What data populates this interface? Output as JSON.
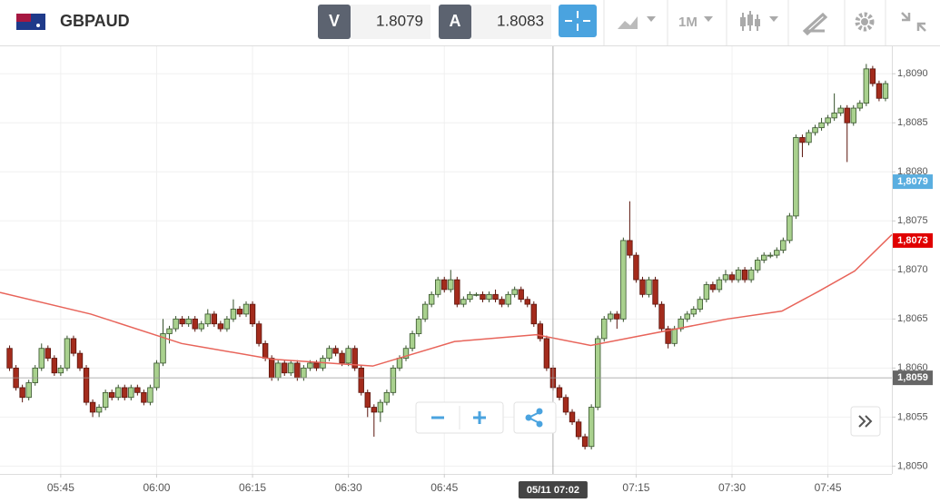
{
  "toolbar": {
    "symbol": "GBPAUD",
    "bid_label": "V",
    "bid": 1.8079,
    "ask_label": "A",
    "ask": 1.8083,
    "timeframe": "1M"
  },
  "chart_data": {
    "type": "candlestick",
    "xlim": [
      335.5,
      475
    ],
    "ylim": [
      1.80492,
      1.80928
    ],
    "xticks": [
      {
        "value": 345,
        "label": "05:45"
      },
      {
        "value": 360,
        "label": "06:00"
      },
      {
        "value": 375,
        "label": "06:15"
      },
      {
        "value": 390,
        "label": "06:30"
      },
      {
        "value": 405,
        "label": "06:45"
      },
      {
        "value": 435,
        "label": "07:15"
      },
      {
        "value": 450,
        "label": "07:30"
      },
      {
        "value": 465,
        "label": "07:45"
      }
    ],
    "yticks": [
      {
        "value": 1.805,
        "label": "1,8050"
      },
      {
        "value": 1.8055,
        "label": "1,8055"
      },
      {
        "value": 1.806,
        "label": "1,8060"
      },
      {
        "value": 1.8065,
        "label": "1,8065"
      },
      {
        "value": 1.807,
        "label": "1,8070"
      },
      {
        "value": 1.8075,
        "label": "1,8075"
      },
      {
        "value": 1.808,
        "label": "1,8080"
      },
      {
        "value": 1.8085,
        "label": "1,8085"
      },
      {
        "value": 1.809,
        "label": "1,8090"
      }
    ],
    "grid": true,
    "up_color": "#a9d18e",
    "down_color": "#a32b1c",
    "candles": [
      [
        337,
        1.8062,
        1.80623,
        1.80597,
        1.806
      ],
      [
        338,
        1.806,
        1.80603,
        1.80577,
        1.8058
      ],
      [
        339,
        1.8058,
        1.80583,
        1.80565,
        1.8057
      ],
      [
        340,
        1.8057,
        1.80588,
        1.80567,
        1.80585
      ],
      [
        341,
        1.80585,
        1.80603,
        1.80582,
        1.806
      ],
      [
        342,
        1.806,
        1.80625,
        1.80597,
        1.8062
      ],
      [
        343,
        1.8062,
        1.80623,
        1.80607,
        1.8061
      ],
      [
        344,
        1.8061,
        1.80613,
        1.80592,
        1.80595
      ],
      [
        345,
        1.80595,
        1.80603,
        1.80592,
        1.806
      ],
      [
        346,
        1.806,
        1.80633,
        1.80597,
        1.8063
      ],
      [
        347,
        1.8063,
        1.80633,
        1.80612,
        1.80615
      ],
      [
        348,
        1.80615,
        1.80618,
        1.80597,
        1.806
      ],
      [
        349,
        1.806,
        1.80603,
        1.80562,
        1.80565
      ],
      [
        350,
        1.80565,
        1.80568,
        1.8055,
        1.80555
      ],
      [
        351,
        1.80555,
        1.80563,
        1.8055,
        1.8056
      ],
      [
        352,
        1.8056,
        1.80578,
        1.80557,
        1.80575
      ],
      [
        353,
        1.80575,
        1.80578,
        1.80567,
        1.8057
      ],
      [
        354,
        1.8057,
        1.80583,
        1.80567,
        1.8058
      ],
      [
        355,
        1.8058,
        1.80583,
        1.80567,
        1.8057
      ],
      [
        356,
        1.8057,
        1.80583,
        1.80567,
        1.8058
      ],
      [
        357,
        1.8058,
        1.80583,
        1.80572,
        1.80575
      ],
      [
        358,
        1.80575,
        1.80578,
        1.80562,
        1.80565
      ],
      [
        359,
        1.80565,
        1.80583,
        1.80562,
        1.8058
      ],
      [
        360,
        1.8058,
        1.80608,
        1.80577,
        1.80605
      ],
      [
        361,
        1.80605,
        1.8065,
        1.80602,
        1.80635
      ],
      [
        362,
        1.80635,
        1.80643,
        1.80625,
        1.8064
      ],
      [
        363,
        1.8064,
        1.80653,
        1.80637,
        1.8065
      ],
      [
        364,
        1.8065,
        1.80653,
        1.80642,
        1.80645
      ],
      [
        365,
        1.80645,
        1.80653,
        1.80642,
        1.8065
      ],
      [
        366,
        1.8065,
        1.80653,
        1.80637,
        1.8064
      ],
      [
        367,
        1.8064,
        1.80648,
        1.80637,
        1.80645
      ],
      [
        368,
        1.80645,
        1.8066,
        1.80642,
        1.80655
      ],
      [
        369,
        1.80655,
        1.80658,
        1.80642,
        1.80645
      ],
      [
        370,
        1.80645,
        1.80648,
        1.80637,
        1.8064
      ],
      [
        371,
        1.8064,
        1.80653,
        1.80637,
        1.8065
      ],
      [
        372,
        1.8065,
        1.8067,
        1.80647,
        1.8066
      ],
      [
        373,
        1.8066,
        1.80663,
        1.80652,
        1.80655
      ],
      [
        374,
        1.80655,
        1.80668,
        1.80652,
        1.80665
      ],
      [
        375,
        1.80665,
        1.80668,
        1.80642,
        1.80645
      ],
      [
        376,
        1.80645,
        1.80648,
        1.80622,
        1.80625
      ],
      [
        377,
        1.80625,
        1.80628,
        1.80607,
        1.8061
      ],
      [
        378,
        1.8061,
        1.80613,
        1.80587,
        1.8059
      ],
      [
        379,
        1.8059,
        1.80608,
        1.80587,
        1.80605
      ],
      [
        380,
        1.80605,
        1.80608,
        1.80592,
        1.80595
      ],
      [
        381,
        1.80595,
        1.80608,
        1.80592,
        1.80605
      ],
      [
        382,
        1.80605,
        1.80608,
        1.80587,
        1.8059
      ],
      [
        383,
        1.8059,
        1.80603,
        1.80587,
        1.806
      ],
      [
        384,
        1.806,
        1.80608,
        1.80597,
        1.80605
      ],
      [
        385,
        1.80605,
        1.80608,
        1.80597,
        1.806
      ],
      [
        386,
        1.806,
        1.80613,
        1.80597,
        1.8061
      ],
      [
        387,
        1.8061,
        1.80623,
        1.80607,
        1.8062
      ],
      [
        388,
        1.8062,
        1.80623,
        1.80612,
        1.80615
      ],
      [
        389,
        1.80615,
        1.80618,
        1.80602,
        1.80605
      ],
      [
        390,
        1.80605,
        1.80623,
        1.80602,
        1.8062
      ],
      [
        391,
        1.8062,
        1.80623,
        1.80597,
        1.806
      ],
      [
        392,
        1.806,
        1.80603,
        1.80572,
        1.80575
      ],
      [
        393,
        1.80575,
        1.80578,
        1.8055,
        1.8056
      ],
      [
        394,
        1.8056,
        1.80563,
        1.8053,
        1.80555
      ],
      [
        395,
        1.80555,
        1.80568,
        1.80545,
        1.80565
      ],
      [
        396,
        1.80565,
        1.80578,
        1.80562,
        1.80575
      ],
      [
        397,
        1.80575,
        1.80603,
        1.80572,
        1.806
      ],
      [
        398,
        1.806,
        1.80613,
        1.80597,
        1.8061
      ],
      [
        399,
        1.8061,
        1.80623,
        1.80607,
        1.8062
      ],
      [
        400,
        1.8062,
        1.80638,
        1.80617,
        1.80635
      ],
      [
        401,
        1.80635,
        1.80653,
        1.80632,
        1.8065
      ],
      [
        402,
        1.8065,
        1.80668,
        1.80647,
        1.80665
      ],
      [
        403,
        1.80665,
        1.80678,
        1.80662,
        1.80675
      ],
      [
        404,
        1.80675,
        1.80693,
        1.80672,
        1.8069
      ],
      [
        405,
        1.8069,
        1.80693,
        1.80677,
        1.8068
      ],
      [
        406,
        1.8068,
        1.807,
        1.80677,
        1.8069
      ],
      [
        407,
        1.8069,
        1.80693,
        1.80662,
        1.80665
      ],
      [
        408,
        1.80665,
        1.80673,
        1.80662,
        1.8067
      ],
      [
        409,
        1.8067,
        1.80678,
        1.80667,
        1.80675
      ],
      [
        410,
        1.80675,
        1.80677,
        1.80673,
        1.80675
      ],
      [
        411,
        1.80675,
        1.80678,
        1.80667,
        1.8067
      ],
      [
        412,
        1.8067,
        1.80678,
        1.80667,
        1.80675
      ],
      [
        413,
        1.80675,
        1.8068,
        1.80667,
        1.8067
      ],
      [
        414,
        1.8067,
        1.80673,
        1.80662,
        1.80665
      ],
      [
        415,
        1.80665,
        1.80678,
        1.80662,
        1.80675
      ],
      [
        416,
        1.80675,
        1.80683,
        1.80672,
        1.8068
      ],
      [
        417,
        1.8068,
        1.80683,
        1.80667,
        1.8067
      ],
      [
        418,
        1.8067,
        1.80673,
        1.80662,
        1.80665
      ],
      [
        419,
        1.80665,
        1.80668,
        1.80642,
        1.80645
      ],
      [
        420,
        1.80645,
        1.80648,
        1.80627,
        1.8063
      ],
      [
        421,
        1.8063,
        1.80633,
        1.80597,
        1.806
      ],
      [
        422,
        1.806,
        1.80603,
        1.80577,
        1.8058
      ],
      [
        423,
        1.8058,
        1.80583,
        1.80567,
        1.8057
      ],
      [
        424,
        1.8057,
        1.80573,
        1.80552,
        1.80555
      ],
      [
        425,
        1.80555,
        1.80558,
        1.80542,
        1.80545
      ],
      [
        426,
        1.80545,
        1.80548,
        1.80527,
        1.8053
      ],
      [
        427,
        1.8053,
        1.80533,
        1.80517,
        1.8052
      ],
      [
        428,
        1.8052,
        1.80563,
        1.80517,
        1.8056
      ],
      [
        429,
        1.8056,
        1.80633,
        1.80557,
        1.8063
      ],
      [
        430,
        1.8063,
        1.80653,
        1.80627,
        1.8065
      ],
      [
        431,
        1.8065,
        1.80658,
        1.80647,
        1.80655
      ],
      [
        432,
        1.80655,
        1.80658,
        1.8064,
        1.8065
      ],
      [
        433,
        1.8065,
        1.80733,
        1.80647,
        1.8073
      ],
      [
        434,
        1.8073,
        1.8077,
        1.80712,
        1.80715
      ],
      [
        435,
        1.80715,
        1.80718,
        1.80687,
        1.8069
      ],
      [
        436,
        1.8069,
        1.80693,
        1.80672,
        1.80675
      ],
      [
        437,
        1.80675,
        1.80693,
        1.80672,
        1.8069
      ],
      [
        438,
        1.8069,
        1.80693,
        1.80662,
        1.80665
      ],
      [
        439,
        1.80665,
        1.80668,
        1.80637,
        1.8064
      ],
      [
        440,
        1.8064,
        1.80643,
        1.8062,
        1.80625
      ],
      [
        441,
        1.80625,
        1.80643,
        1.80622,
        1.8064
      ],
      [
        442,
        1.8064,
        1.80653,
        1.80637,
        1.8065
      ],
      [
        443,
        1.8065,
        1.80658,
        1.80647,
        1.80655
      ],
      [
        444,
        1.80655,
        1.80663,
        1.80652,
        1.8066
      ],
      [
        445,
        1.8066,
        1.80673,
        1.80657,
        1.8067
      ],
      [
        446,
        1.8067,
        1.80688,
        1.80667,
        1.80685
      ],
      [
        447,
        1.80685,
        1.80688,
        1.80677,
        1.8068
      ],
      [
        448,
        1.8068,
        1.80693,
        1.80677,
        1.8069
      ],
      [
        449,
        1.8069,
        1.807,
        1.80687,
        1.80695
      ],
      [
        450,
        1.80695,
        1.80698,
        1.80687,
        1.8069
      ],
      [
        451,
        1.8069,
        1.80703,
        1.80687,
        1.807
      ],
      [
        452,
        1.807,
        1.80703,
        1.80687,
        1.8069
      ],
      [
        453,
        1.8069,
        1.80703,
        1.80687,
        1.807
      ],
      [
        454,
        1.807,
        1.80713,
        1.80697,
        1.8071
      ],
      [
        455,
        1.8071,
        1.80718,
        1.80707,
        1.80715
      ],
      [
        456,
        1.80715,
        1.80718,
        1.80712,
        1.80715
      ],
      [
        457,
        1.80715,
        1.80723,
        1.80712,
        1.8072
      ],
      [
        458,
        1.8072,
        1.80733,
        1.80717,
        1.8073
      ],
      [
        459,
        1.8073,
        1.80758,
        1.80727,
        1.80755
      ],
      [
        460,
        1.80755,
        1.80838,
        1.80752,
        1.80835
      ],
      [
        461,
        1.80835,
        1.80838,
        1.80815,
        1.8083
      ],
      [
        462,
        1.8083,
        1.80843,
        1.80827,
        1.8084
      ],
      [
        463,
        1.8084,
        1.80848,
        1.80837,
        1.80845
      ],
      [
        464,
        1.80845,
        1.80855,
        1.80842,
        1.8085
      ],
      [
        465,
        1.8085,
        1.80858,
        1.80847,
        1.80855
      ],
      [
        466,
        1.80855,
        1.8088,
        1.80852,
        1.8086
      ],
      [
        467,
        1.8086,
        1.80868,
        1.80857,
        1.80865
      ],
      [
        468,
        1.80865,
        1.80868,
        1.8081,
        1.8085
      ],
      [
        469,
        1.8085,
        1.80868,
        1.80847,
        1.80865
      ],
      [
        470,
        1.80865,
        1.80873,
        1.80862,
        1.8087
      ],
      [
        471,
        1.8087,
        1.8091,
        1.80867,
        1.80905
      ],
      [
        472,
        1.80905,
        1.80908,
        1.80887,
        1.8089
      ],
      [
        473,
        1.8089,
        1.80893,
        1.80872,
        1.80875
      ],
      [
        474,
        1.80875,
        1.80893,
        1.80872,
        1.8089
      ]
    ],
    "moving_average": {
      "color": "#e8645a",
      "points": [
        [
          335.5,
          1.80677
        ],
        [
          349.7,
          1.80655
        ],
        [
          363.9,
          1.80625
        ],
        [
          378.1,
          1.80609
        ],
        [
          393.8,
          1.80602
        ],
        [
          406.6,
          1.80627
        ],
        [
          419.4,
          1.80634
        ],
        [
          427.9,
          1.80623
        ],
        [
          435,
          1.80632
        ],
        [
          449.3,
          1.8065
        ],
        [
          457.8,
          1.80658
        ],
        [
          463.5,
          1.80678
        ],
        [
          469.2,
          1.80699
        ],
        [
          475,
          1.80736
        ]
      ]
    },
    "price_tags": [
      {
        "value": 1.8079,
        "label": "1,8079",
        "color": "#5aaee0"
      },
      {
        "value": 1.8073,
        "label": "1,8073",
        "color": "#e00000"
      },
      {
        "value": 1.8059,
        "label": "1,8059",
        "color": "#666666"
      }
    ],
    "crosshair": {
      "x": 422,
      "label": "05/11 07:02"
    }
  }
}
